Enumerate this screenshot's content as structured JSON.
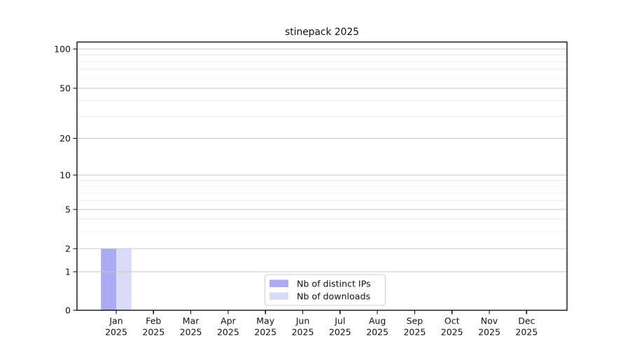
{
  "chart_data": {
    "type": "bar",
    "title": "stinepack 2025",
    "x_axis": {
      "categories": [
        "Jan",
        "Feb",
        "Mar",
        "Apr",
        "May",
        "Jun",
        "Jul",
        "Aug",
        "Sep",
        "Oct",
        "Nov",
        "Dec"
      ],
      "year_label": "2025"
    },
    "y_axis": {
      "scale": "log-like with zero baseline",
      "tick_labels": [
        0,
        1,
        2,
        5,
        10,
        20,
        50,
        100
      ],
      "minor_gridlines": [
        3,
        4,
        6,
        7,
        8,
        9,
        30,
        40,
        60,
        70,
        80,
        90
      ],
      "range_max": 113
    },
    "series": [
      {
        "name": "Nb of distinct IPs",
        "color": "#aaaaf5",
        "values": [
          2,
          0,
          0,
          0,
          0,
          0,
          0,
          0,
          0,
          0,
          0,
          0
        ]
      },
      {
        "name": "Nb of downloads",
        "color": "#dadaf9",
        "values": [
          2,
          0,
          0,
          0,
          0,
          0,
          0,
          0,
          0,
          0,
          0,
          0
        ]
      }
    ],
    "legend": {
      "position": "bottom-center",
      "entries": [
        "Nb of distinct IPs",
        "Nb of downloads"
      ]
    },
    "grid": {
      "major": true,
      "minor": true
    }
  },
  "colors": {
    "bar_distinct_ips": "#aaaaf5",
    "bar_downloads": "#dadaf9",
    "grid_major": "#c8c8c8",
    "grid_minor": "#ebebeb",
    "spine": "#000000",
    "text": "#111111",
    "legend_border": "#cccccc",
    "background": "#ffffff"
  }
}
